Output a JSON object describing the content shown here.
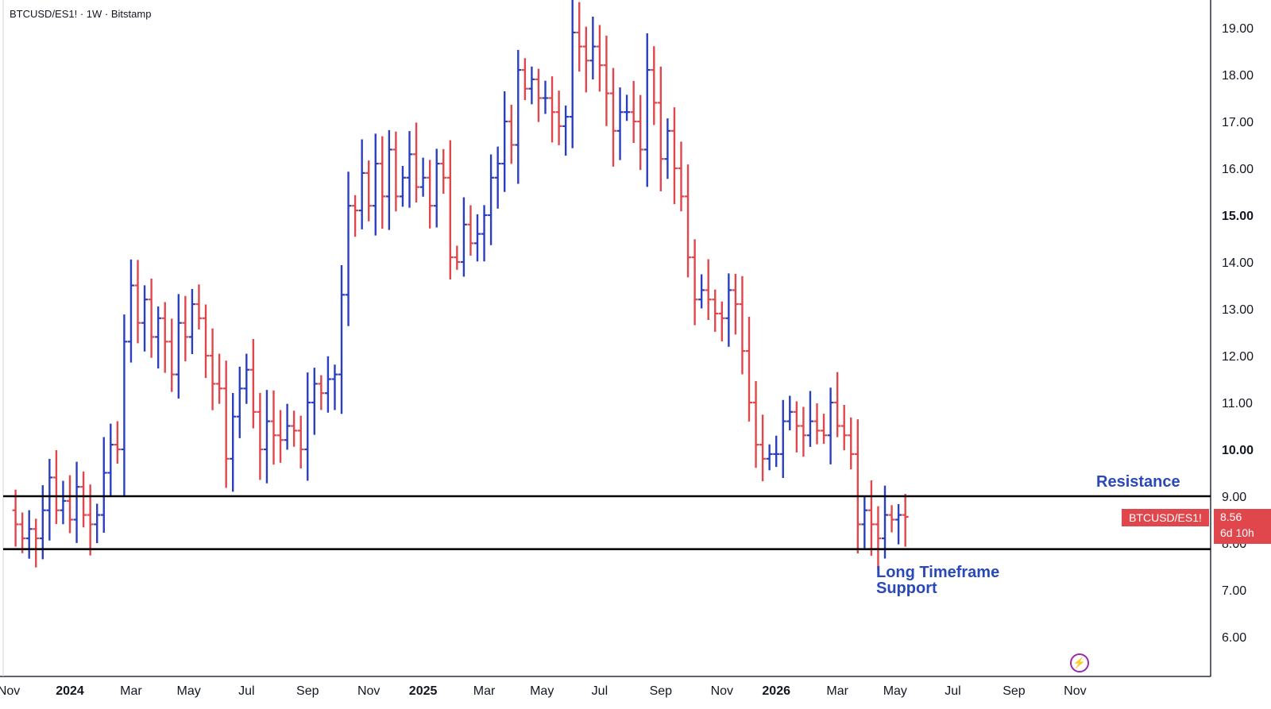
{
  "header": {
    "symbol_line": "BTCUSD/ES1! · 1W · Bitstamp"
  },
  "price_tag": {
    "symbol": "BTCUSD/ES1!",
    "price": "8.56",
    "countdown": "6d 10h"
  },
  "annotations": {
    "resistance": "Resistance",
    "support": "Long Timeframe Support"
  },
  "colors": {
    "up": "#2a3fbf",
    "down": "#e0474c",
    "level_line": "#000000",
    "axis_text": "#131722"
  },
  "chart_data": {
    "type": "ohlc",
    "title": "BTCUSD/ES1! · 1W · Bitstamp",
    "ylim": [
      5.2,
      19.5
    ],
    "y_ticks": [
      "19.00",
      "18.00",
      "17.00",
      "16.00",
      "15.00",
      "14.00",
      "13.00",
      "12.00",
      "11.00",
      "10.00",
      "9.00",
      "8.00",
      "7.00",
      "6.00"
    ],
    "y_ticks_bold": [
      "15.00",
      "10.00"
    ],
    "x_ticks": [
      {
        "label": "Nov",
        "week": -9,
        "bold": false
      },
      {
        "label": "2024",
        "week": 0,
        "bold": true
      },
      {
        "label": "Mar",
        "week": 9,
        "bold": false
      },
      {
        "label": "May",
        "week": 17.5,
        "bold": false
      },
      {
        "label": "Jul",
        "week": 26,
        "bold": false
      },
      {
        "label": "Sep",
        "week": 35,
        "bold": false
      },
      {
        "label": "Nov",
        "week": 44,
        "bold": false
      },
      {
        "label": "2025",
        "week": 52,
        "bold": true
      },
      {
        "label": "Mar",
        "week": 61,
        "bold": false
      },
      {
        "label": "May",
        "week": 69.5,
        "bold": false
      },
      {
        "label": "Jul",
        "week": 78,
        "bold": false
      },
      {
        "label": "Sep",
        "week": 87,
        "bold": false
      },
      {
        "label": "Nov",
        "week": 96,
        "bold": false
      },
      {
        "label": "2026",
        "week": 104,
        "bold": true
      },
      {
        "label": "Mar",
        "week": 113,
        "bold": false
      },
      {
        "label": "May",
        "week": 121.5,
        "bold": false
      },
      {
        "label": "Jul",
        "week": 130,
        "bold": false
      },
      {
        "label": "Sep",
        "week": 139,
        "bold": false
      },
      {
        "label": "Nov",
        "week": 148,
        "bold": false
      }
    ],
    "levels": [
      {
        "name": "Resistance",
        "value": 9.0
      },
      {
        "name": "Long Timeframe Support",
        "value": 7.87
      }
    ],
    "last_price": 8.56,
    "first_week": -8,
    "closes": [
      8.4,
      8.1,
      8.3,
      8.1,
      8.7,
      9.4,
      8.7,
      8.9,
      8.5,
      9.2,
      8.6,
      8.4,
      8.6,
      9.5,
      10.1,
      10.0,
      12.3,
      13.5,
      12.7,
      13.2,
      12.4,
      12.8,
      12.3,
      11.6,
      12.7,
      12.4,
      13.1,
      12.8,
      12.0,
      11.4,
      11.3,
      9.8,
      10.7,
      11.3,
      11.7,
      10.8,
      10.0,
      10.6,
      10.3,
      10.2,
      10.5,
      10.4,
      10.0,
      11.0,
      11.4,
      11.2,
      11.5,
      11.6,
      13.3,
      15.2,
      15.1,
      15.9,
      15.2,
      16.1,
      15.4,
      16.4,
      15.4,
      15.8,
      16.3,
      15.6,
      15.8,
      15.2,
      16.1,
      15.8,
      14.1,
      14.0,
      14.8,
      14.4,
      14.6,
      15.0,
      15.8,
      16.1,
      17.0,
      16.5,
      18.1,
      17.7,
      17.9,
      17.5,
      17.5,
      17.2,
      16.9,
      17.1,
      18.9,
      18.6,
      18.3,
      18.6,
      18.2,
      17.6,
      16.8,
      17.2,
      17.2,
      17.0,
      16.4,
      18.1,
      17.4,
      16.2,
      16.8,
      16.0,
      15.4,
      14.1,
      13.2,
      13.4,
      13.2,
      12.9,
      12.8,
      13.4,
      13.1,
      12.1,
      11.0,
      10.1,
      9.8,
      9.9,
      9.9,
      10.6,
      10.8,
      10.5,
      10.3,
      10.6,
      10.4,
      10.3,
      11.0,
      10.5,
      10.3,
      9.9,
      8.4,
      8.7,
      8.4,
      8.1,
      8.6,
      8.5,
      8.6,
      8.56
    ]
  }
}
